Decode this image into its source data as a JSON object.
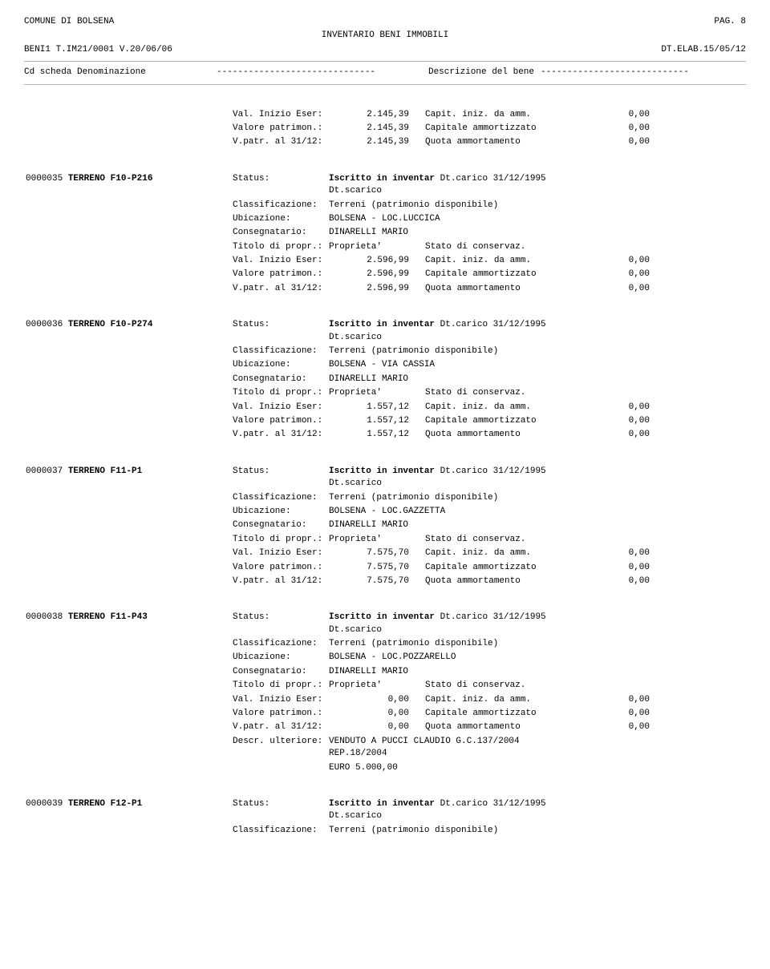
{
  "header": {
    "org": "COMUNE DI BOLSENA",
    "page_label": "PAG.",
    "page_num": "8",
    "title": "INVENTARIO BENI IMMOBILI",
    "left_code": "BENI1 T.IM21/0001 V.20/06/06",
    "right_code": "DT.ELAB.15/05/12",
    "col1": "Cd scheda Denominazione",
    "col2": "Descrizione del bene"
  },
  "labels": {
    "status": "Status:",
    "classificazione": "Classificazione:",
    "ubicazione": "Ubicazione:",
    "consegnatario": "Consegnatario:",
    "titolo": "Titolo di propr.:",
    "val_inizio": "Val. Inizio Eser:",
    "valore_patr": "Valore patrimon.:",
    "vpatr_al": "V.patr. al 31/12:",
    "descr_ult": "Descr. ulteriore:",
    "stato_conservaz": "Stato di conservaz.",
    "capit_iniz": "Capit. iniz. da amm.",
    "capitale_amm": "Capitale ammortizzato",
    "quota_amm": "Quota ammortamento",
    "proprieta": "Proprieta'",
    "iscritto": "Iscritto in inventar",
    "dt_carico": "Dt.carico 31/12/1995 Dt.scarico",
    "terreni": "Terreni (patrimonio disponibile)"
  },
  "continuation": {
    "val_inizio": "2.145,39",
    "valore_patr": "2.145,39",
    "vpatr_al": "2.145,39",
    "capit_iniz_v": "0,00",
    "capitale_amm_v": "0,00",
    "quota_amm_v": "0,00"
  },
  "records": [
    {
      "code": "0000035",
      "name": "TERRENO F10-P216",
      "ubicazione": "BOLSENA - LOC.LUCCICA",
      "consegnatario": "DINARELLI MARIO",
      "val_inizio": "2.596,99",
      "valore_patr": "2.596,99",
      "vpatr_al": "2.596,99",
      "capit_iniz_v": "0,00",
      "capitale_amm_v": "0,00",
      "quota_amm_v": "0,00"
    },
    {
      "code": "0000036",
      "name": "TERRENO F10-P274",
      "ubicazione": "BOLSENA - VIA CASSIA",
      "consegnatario": "DINARELLI MARIO",
      "val_inizio": "1.557,12",
      "valore_patr": "1.557,12",
      "vpatr_al": "1.557,12",
      "capit_iniz_v": "0,00",
      "capitale_amm_v": "0,00",
      "quota_amm_v": "0,00"
    },
    {
      "code": "0000037",
      "name": "TERRENO F11-P1",
      "ubicazione": "BOLSENA - LOC.GAZZETTA",
      "consegnatario": "DINARELLI MARIO",
      "val_inizio": "7.575,70",
      "valore_patr": "7.575,70",
      "vpatr_al": "7.575,70",
      "capit_iniz_v": "0,00",
      "capitale_amm_v": "0,00",
      "quota_amm_v": "0,00"
    },
    {
      "code": "0000038",
      "name": "TERRENO F11-P43",
      "ubicazione": "BOLSENA - LOC.POZZARELLO",
      "consegnatario": "DINARELLI MARIO",
      "val_inizio": "0,00",
      "valore_patr": "0,00",
      "vpatr_al": "0,00",
      "capit_iniz_v": "0,00",
      "capitale_amm_v": "0,00",
      "quota_amm_v": "0,00",
      "descr_ult1": "VENDUTO A PUCCI CLAUDIO G.C.137/2004 REP.18/2004",
      "descr_ult2": "EURO 5.000,00"
    }
  ],
  "partial": {
    "code": "0000039",
    "name": "TERRENO F12-P1"
  }
}
